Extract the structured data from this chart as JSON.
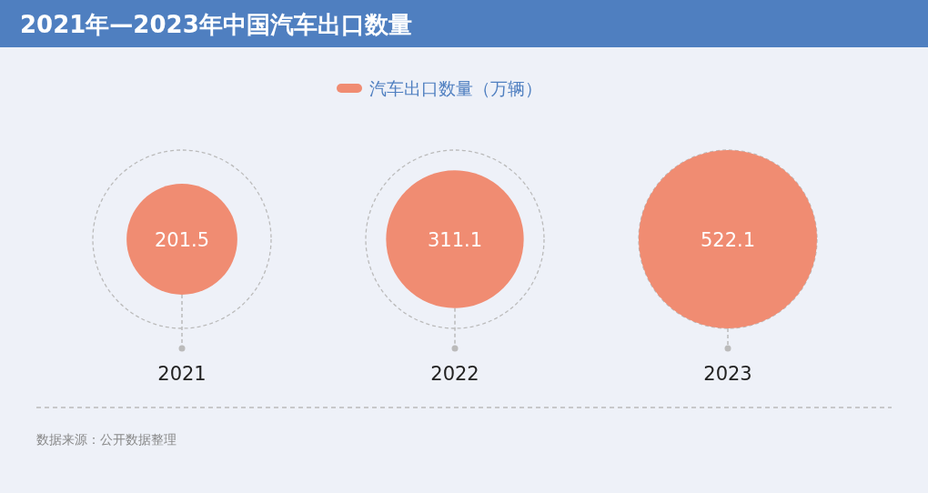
{
  "chart_data": {
    "type": "other",
    "title": "2021年—2023年中国汽车出口数量",
    "categories": [
      "2021",
      "2022",
      "2023"
    ],
    "series": [
      {
        "name": "汽车出口数量（万辆）",
        "color": "#f08c72",
        "values": [
          201.5,
          311.1,
          522.1
        ]
      }
    ],
    "data_labels": true,
    "legend": "top",
    "annotations": [
      "数据来源：公开数据整理"
    ]
  }
}
